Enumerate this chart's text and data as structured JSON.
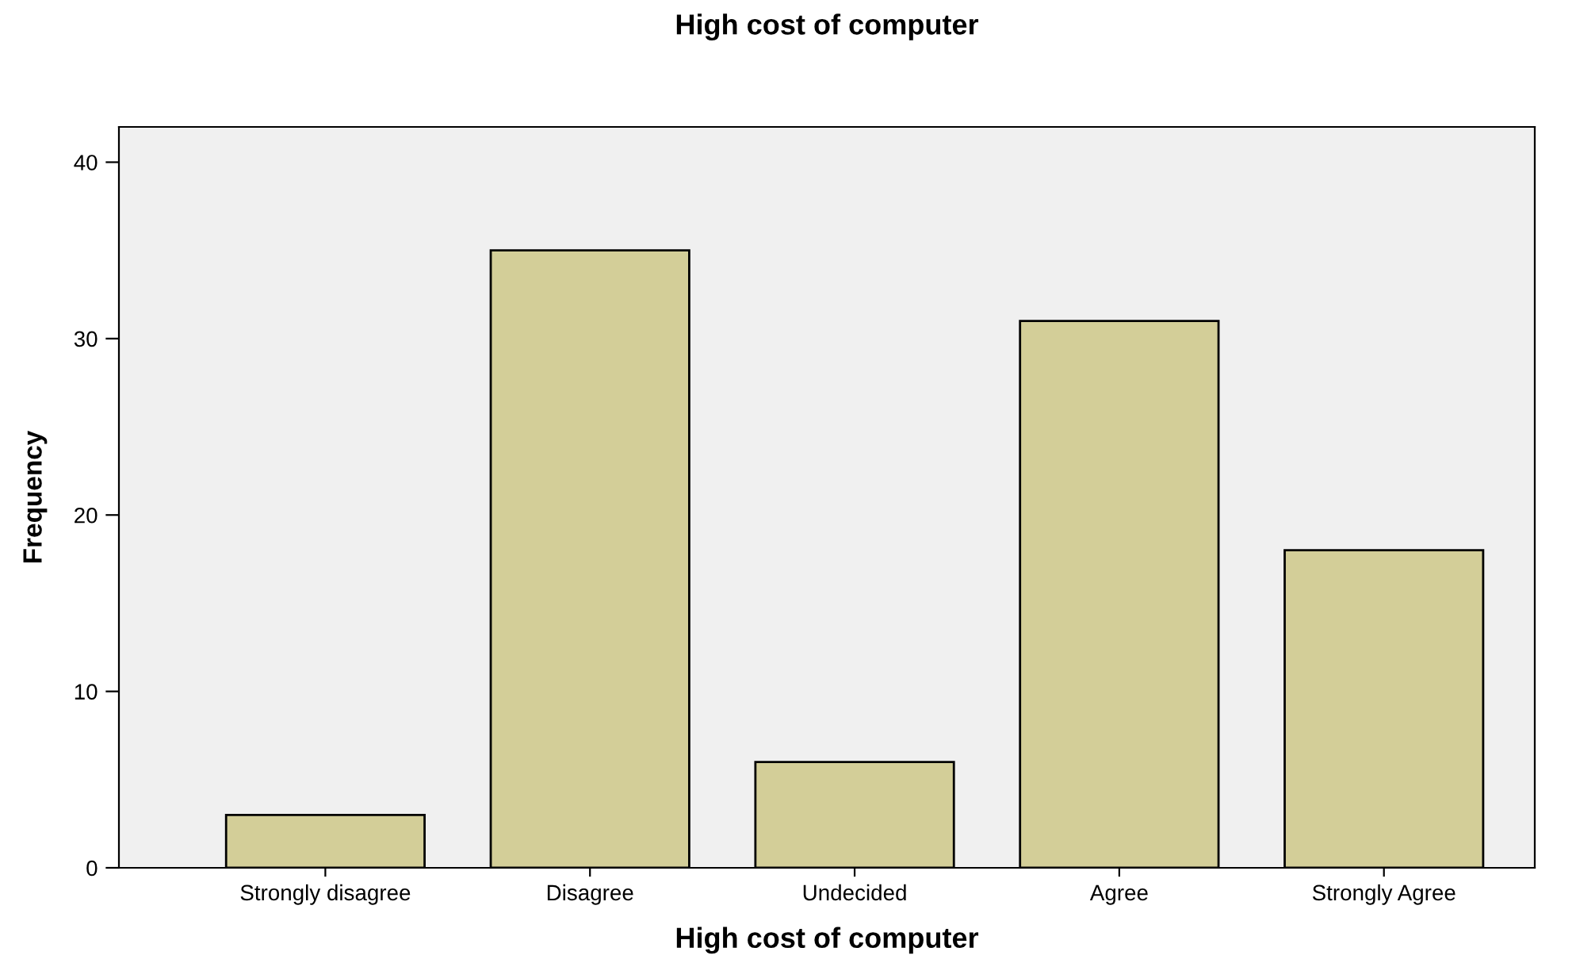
{
  "chart_data": {
    "type": "bar",
    "title": "High cost of computer",
    "xlabel": "High cost of computer",
    "ylabel": "Frequency",
    "categories": [
      "Strongly disagree",
      "Disagree",
      "Undecided",
      "Agree",
      "Strongly Agree"
    ],
    "values": [
      3,
      35,
      6,
      31,
      18
    ],
    "color": "#d3ce98",
    "ylim": [
      0,
      42
    ],
    "yticks": [
      0,
      10,
      20,
      30,
      40
    ],
    "grid": false,
    "legend": false
  }
}
